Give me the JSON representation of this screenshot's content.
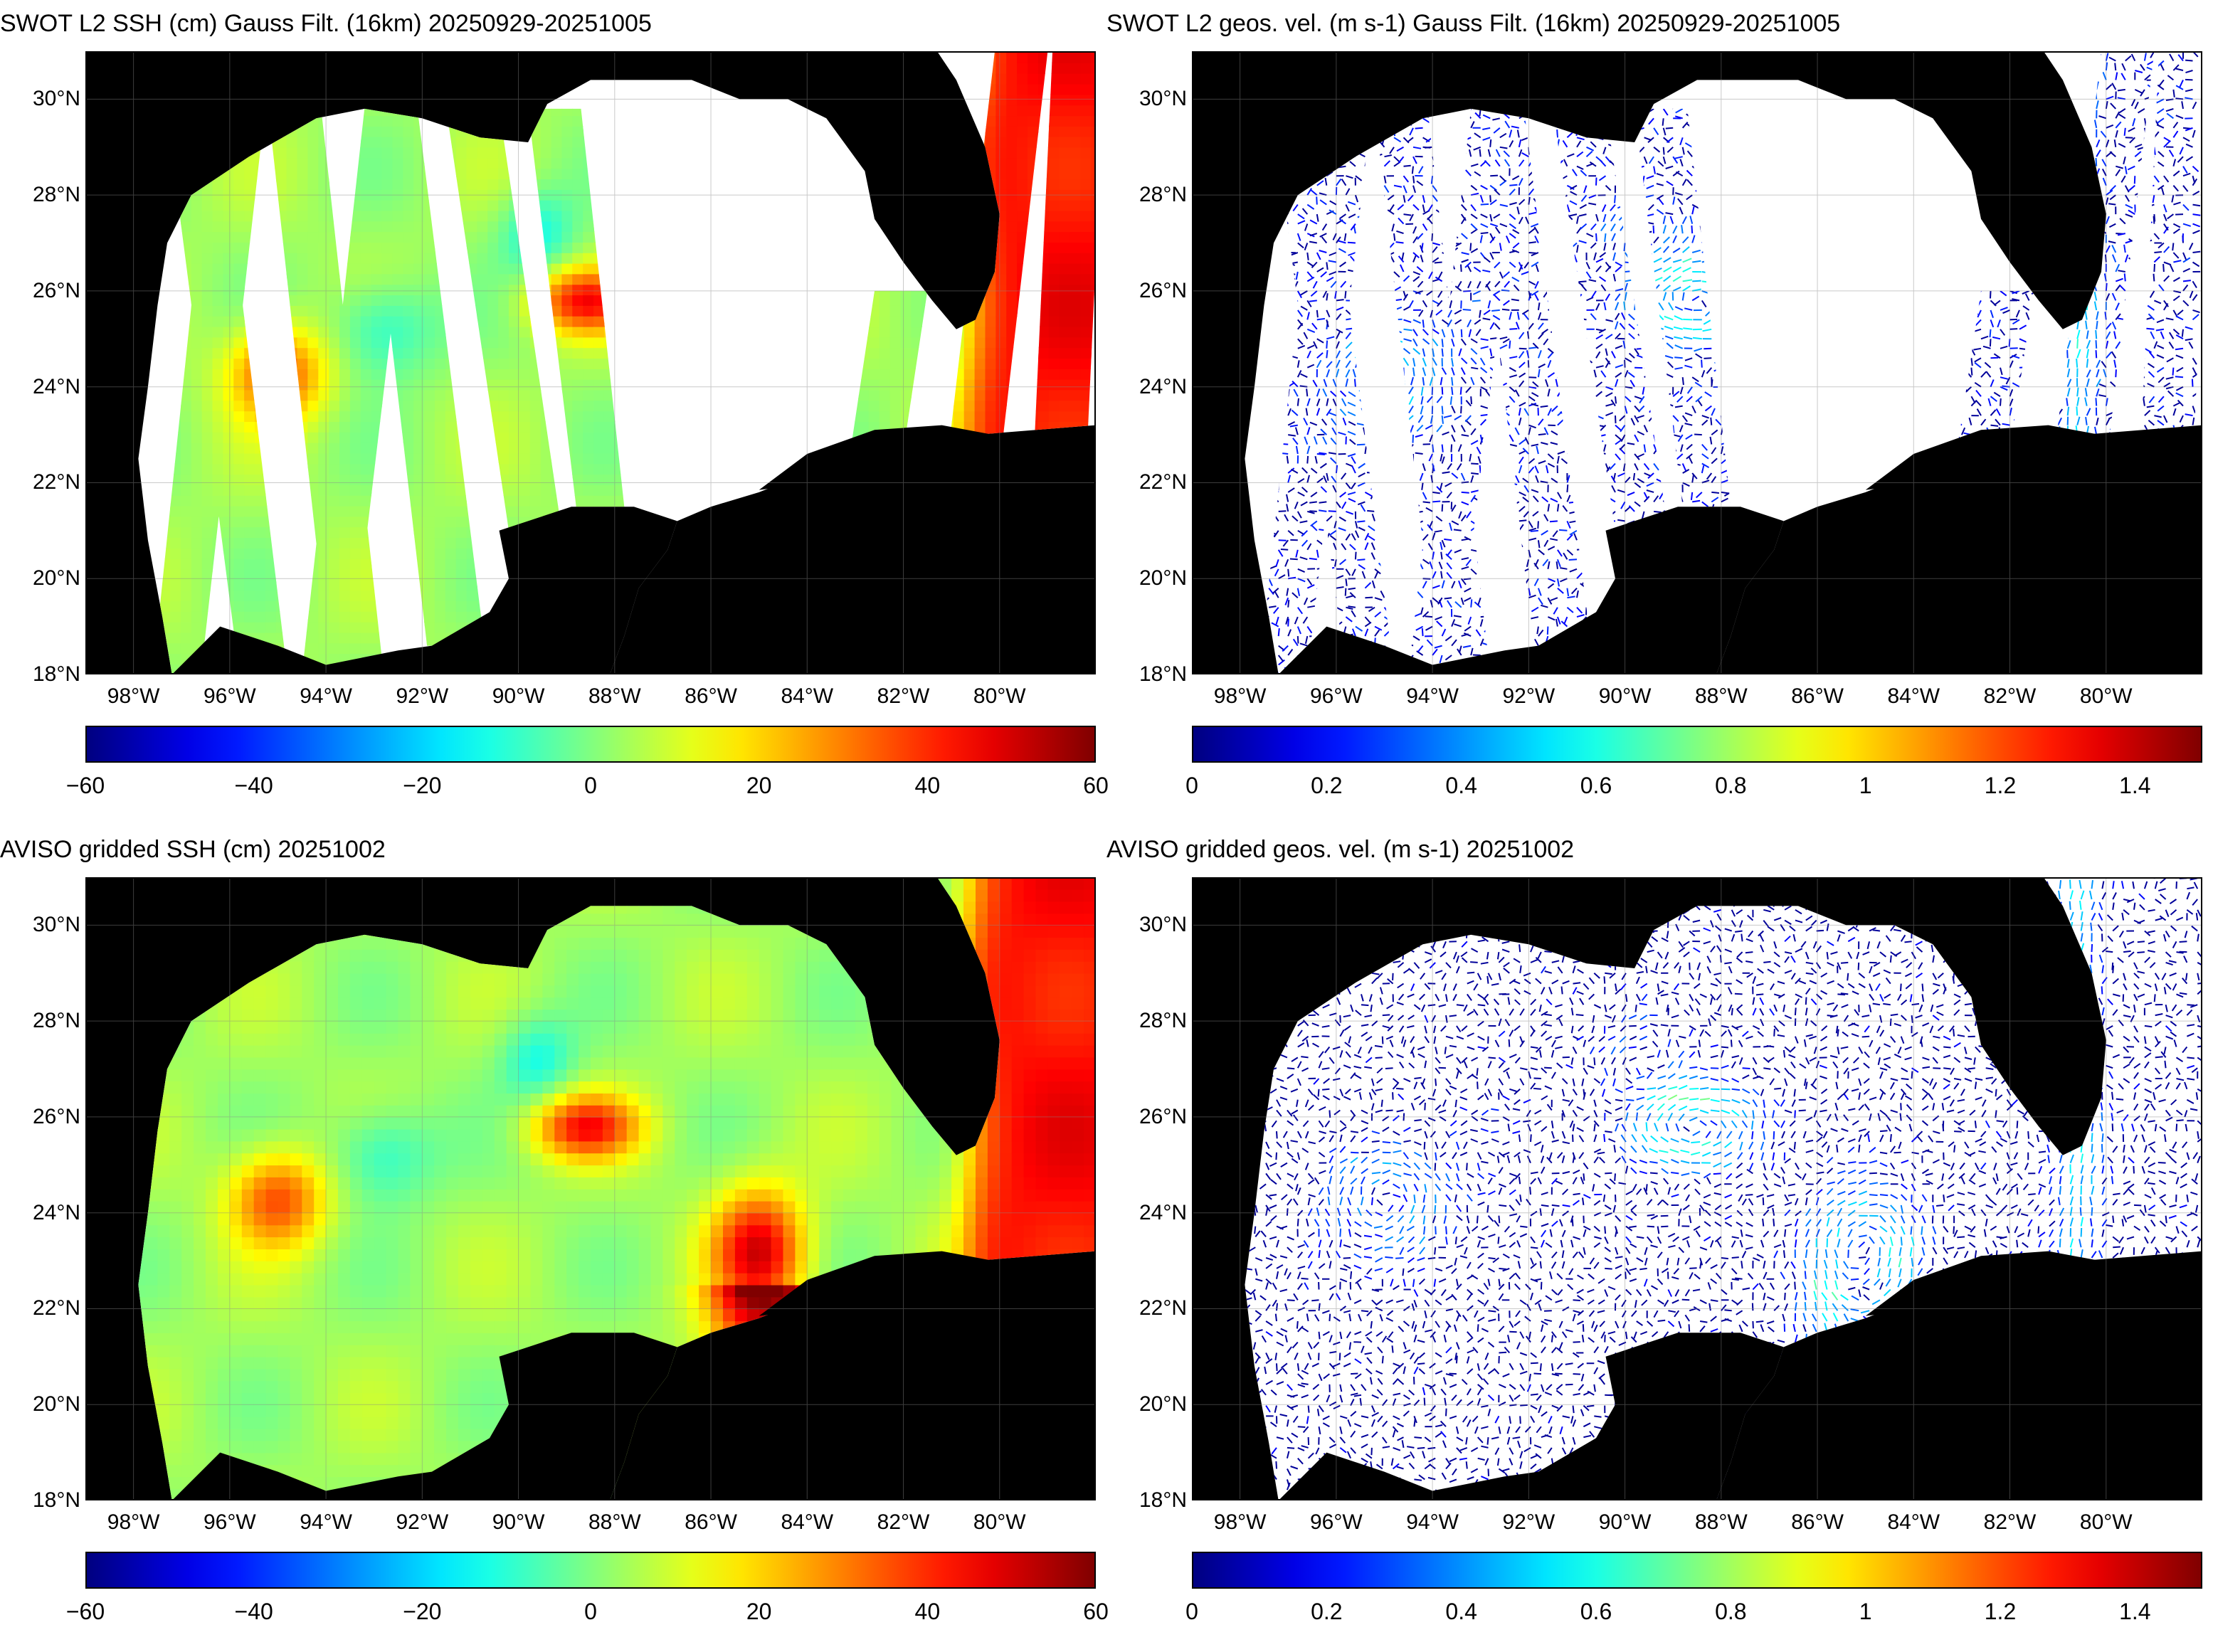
{
  "panels": [
    {
      "id": "swot-ssh",
      "title": "SWOT L2 SSH (cm) Gauss Filt. (16km) 20250929-20251005",
      "kind": "ssh-swath",
      "colorbar": {
        "ticks": [
          "−60",
          "−40",
          "−20",
          "0",
          "20",
          "40",
          "60"
        ],
        "range": [
          -60,
          60
        ]
      }
    },
    {
      "id": "swot-vel",
      "title": "SWOT L2 geos. vel. (m s-1) Gauss Filt. (16km) 20250929-20251005",
      "kind": "vel-swath",
      "colorbar": {
        "ticks": [
          "0",
          "0.2",
          "0.4",
          "0.6",
          "0.8",
          "1",
          "1.2",
          "1.4"
        ],
        "range": [
          0,
          1.5
        ]
      }
    },
    {
      "id": "aviso-ssh",
      "title": "AVISO gridded SSH (cm) 20251002",
      "kind": "ssh-grid",
      "colorbar": {
        "ticks": [
          "−60",
          "−40",
          "−20",
          "0",
          "20",
          "40",
          "60"
        ],
        "range": [
          -60,
          60
        ]
      }
    },
    {
      "id": "aviso-vel",
      "title": "AVISO gridded geos. vel. (m s-1)  20251002",
      "kind": "vel-grid",
      "colorbar": {
        "ticks": [
          "0",
          "0.2",
          "0.4",
          "0.6",
          "0.8",
          "1",
          "1.2",
          "1.4"
        ],
        "range": [
          0,
          1.5
        ]
      }
    }
  ],
  "axes": {
    "lat_labels": [
      "18°N",
      "20°N",
      "22°N",
      "24°N",
      "26°N",
      "28°N",
      "30°N"
    ],
    "lon_labels": [
      "98°W",
      "96°W",
      "94°W",
      "92°W",
      "90°W",
      "88°W",
      "86°W",
      "84°W",
      "82°W",
      "80°W"
    ],
    "lat_range": [
      18,
      31
    ],
    "lon_range": [
      -99,
      -78
    ]
  },
  "colormap": "jet",
  "land_color": "#000000"
}
